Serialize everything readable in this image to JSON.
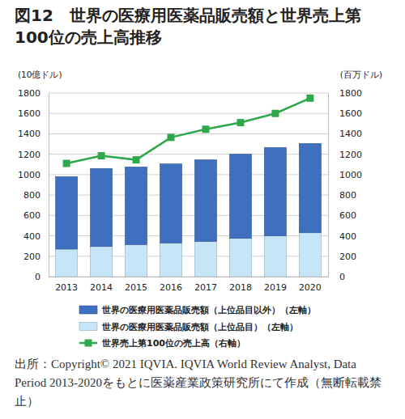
{
  "chart_data": {
    "type": "bar",
    "title": "図12　世界の医療用医薬品販売額と世界売上第100位の売上高推移",
    "ylabel": "(10億ドル)",
    "y2label": "(百万ドル)",
    "source": "出所：Copyright© 2021 IQVIA. IQVIA World Review Analyst, Data Period 2013-2020をもとに医薬産業政策研究所にて作成（無断転載禁止）",
    "categories": [
      "2013",
      "2014",
      "2015",
      "2016",
      "2017",
      "2018",
      "2019",
      "2020"
    ],
    "stacked": true,
    "grid": true,
    "legend": "bottom",
    "ylim": [
      0,
      1800
    ],
    "yticks": [
      0,
      200,
      400,
      600,
      800,
      1000,
      1200,
      1400,
      1600,
      1800
    ],
    "y2lim": [
      0,
      1800
    ],
    "y2ticks": [
      0,
      200,
      400,
      600,
      800,
      1000,
      1200,
      1400,
      1600,
      1800
    ],
    "series": [
      {
        "name": "世界の医療用医薬品販売額（上位品目以外）（左軸）",
        "type": "bar",
        "color": "#3f6fbf",
        "values": [
          710,
          765,
          760,
          775,
          800,
          825,
          865,
          875
        ]
      },
      {
        "name": "世界の医療用医薬品販売額（上位品目）（左軸）",
        "type": "bar",
        "color": "#c6e6f8",
        "values": [
          270,
          295,
          315,
          330,
          345,
          375,
          400,
          430
        ]
      },
      {
        "name": "世界売上第100位の売上高（右軸）",
        "type": "line",
        "axis": "y2",
        "color": "#2ea84a",
        "marker": "square",
        "line_style": "solid",
        "values": [
          1110,
          1185,
          1145,
          1365,
          1445,
          1510,
          1600,
          1750
        ]
      }
    ]
  }
}
